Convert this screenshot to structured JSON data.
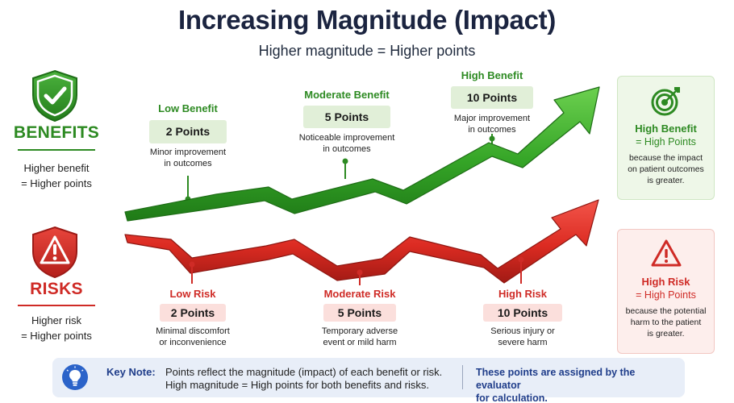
{
  "title": "Increasing Magnitude (Impact)",
  "subtitle": "Higher magnitude = Higher points",
  "benefits": {
    "label": "BENEFITS",
    "desc_line1": "Higher benefit",
    "desc_line2": "= Higher points",
    "color": "#2d8a22",
    "levels": [
      {
        "name": "Low Benefit",
        "points": "2 Points",
        "desc1": "Minor improvement",
        "desc2": "in outcomes"
      },
      {
        "name": "Moderate Benefit",
        "points": "5 Points",
        "desc1": "Noticeable improvement",
        "desc2": "in outcomes"
      },
      {
        "name": "High Benefit",
        "points": "10 Points",
        "desc1": "Major improvement",
        "desc2": "in outcomes"
      }
    ]
  },
  "risks": {
    "label": "RISKS",
    "desc_line1": "Higher risk",
    "desc_line2": "= Higher points",
    "color": "#cf2b26",
    "levels": [
      {
        "name": "Low Risk",
        "points": "2 Points",
        "desc1": "Minimal discomfort",
        "desc2": "or inconvenience"
      },
      {
        "name": "Moderate Risk",
        "points": "5 Points",
        "desc1": "Temporary adverse",
        "desc2": "event or mild harm"
      },
      {
        "name": "High Risk",
        "points": "10 Points",
        "desc1": "Serious injury or",
        "desc2": "severe harm"
      }
    ]
  },
  "summary_benefit": {
    "title": "High Benefit",
    "sub": "= High Points",
    "d1": "because the impact",
    "d2": "on patient outcomes",
    "d3": "is greater.",
    "icon": "target-icon"
  },
  "summary_risk": {
    "title": "High Risk",
    "sub": "= High Points",
    "d1": "because the potential",
    "d2": "harm to the patient",
    "d3": "is greater.",
    "icon": "warning-icon"
  },
  "note": {
    "key": "Key Note:",
    "line1": "Points reflect the magnitude (impact) of each benefit or risk.",
    "line2": "High magnitude = High points for both benefits and risks.",
    "right1": "These points are assigned by the evaluator",
    "right2": "for calculation.",
    "icon": "lightbulb-icon"
  }
}
